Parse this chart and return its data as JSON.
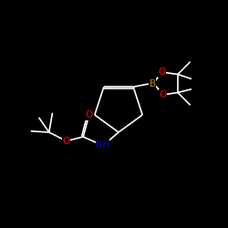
{
  "background_color": "#000000",
  "bond_color": "#ffffff",
  "N_color": "#0000ff",
  "O_color": "#ff0000",
  "B_color": "#b8860b",
  "figsize": [
    2.5,
    2.5
  ],
  "dpi": 100,
  "xlim": [
    0,
    10
  ],
  "ylim": [
    0,
    10
  ],
  "font_size": 6.5,
  "bond_lw": 1.2
}
